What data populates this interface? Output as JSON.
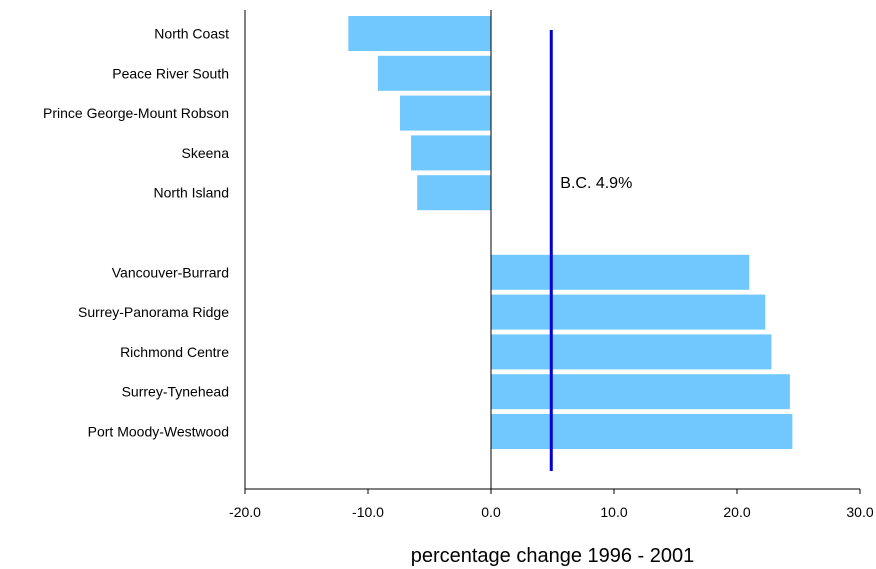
{
  "chart_data": {
    "type": "bar",
    "orientation": "horizontal",
    "categories": [
      "North Coast",
      "Peace River South",
      "Prince George-Mount Robson",
      "Skeena",
      "North Island",
      "",
      "Vancouver-Burrard",
      "Surrey-Panorama Ridge",
      "Richmond Centre",
      "Surrey-Tynehead",
      "Port Moody-Westwood"
    ],
    "values": [
      -11.6,
      -9.2,
      -7.4,
      -6.5,
      -6.0,
      null,
      21.0,
      22.3,
      22.8,
      24.3,
      24.5
    ],
    "xlabel": "percentage change 1996 - 2001",
    "ylabel": "",
    "xlim": [
      -20,
      30
    ],
    "xticks": [
      -20,
      -10,
      0,
      10,
      20,
      30
    ],
    "xtick_labels": [
      "-20.0",
      "-10.0",
      "0.0",
      "10.0",
      "20.0",
      "30.0"
    ],
    "reference_line": {
      "value": 4.9,
      "label": "B.C. 4.9%"
    },
    "grid": false,
    "colors": {
      "bar": "#70C8FF",
      "reference": "#0000D0",
      "axis": "#000000"
    }
  }
}
